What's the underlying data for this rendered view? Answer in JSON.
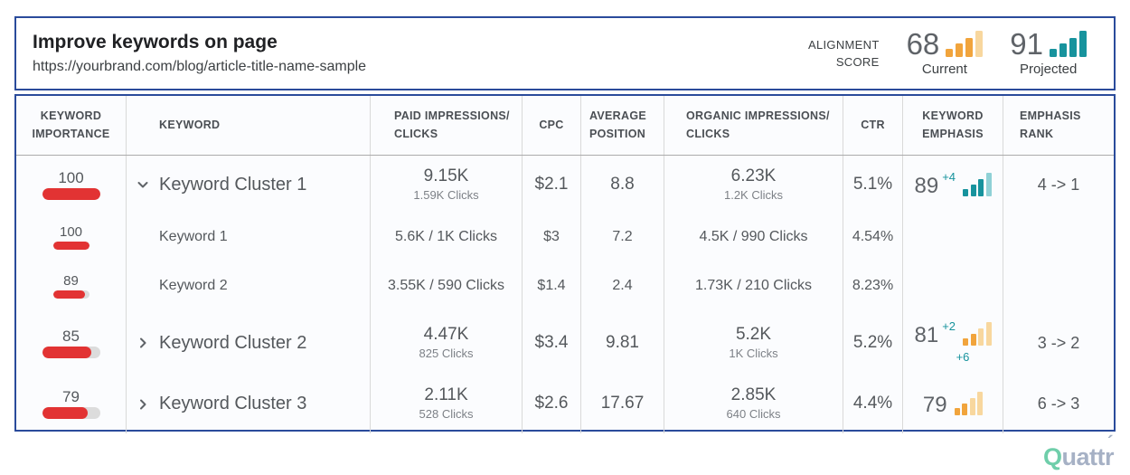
{
  "header": {
    "title": "Improve keywords on page",
    "url": "https://yourbrand.com/blog/article-title-name-sample",
    "alignment_score": {
      "label_line1": "ALIGNMENT",
      "label_line2": "SCORE",
      "current": {
        "value": "68",
        "label": "Current"
      },
      "projected": {
        "value": "91",
        "label": "Projected"
      }
    }
  },
  "table": {
    "columns": {
      "importance": "KEYWORD IMPORTANCE",
      "keyword": "KEYWORD",
      "paid": "PAID IMPRESSIONS/ CLICKS",
      "cpc": "CPC",
      "position": "AVERAGE POSITION",
      "organic": "ORGANIC IMPRESSIONS/ CLICKS",
      "ctr": "CTR",
      "emphasis": "KEYWORD EMPHASIS",
      "rank": "EMPHASIS RANK"
    },
    "rows": [
      {
        "importance": 100,
        "keyword": "Keyword Cluster 1",
        "paid_main": "9.15K",
        "paid_sub": "1.59K Clicks",
        "cpc": "$2.1",
        "position": "8.8",
        "organic_main": "6.23K",
        "organic_sub": "1.2K Clicks",
        "ctr": "5.1%",
        "emphasis_value": "89",
        "emphasis_delta": "+4",
        "rank": "4 -> 1"
      },
      {
        "importance": 100,
        "keyword": "Keyword 1",
        "paid": "5.6K / 1K Clicks",
        "cpc": "$3",
        "position": "7.2",
        "organic": "4.5K / 990 Clicks",
        "ctr": "4.54%"
      },
      {
        "importance": 89,
        "keyword": "Keyword 2",
        "paid": "3.55K / 590 Clicks",
        "cpc": "$1.4",
        "position": "2.4",
        "organic": "1.73K / 210 Clicks",
        "ctr": "8.23%"
      },
      {
        "importance": 85,
        "keyword": "Keyword Cluster 2",
        "paid_main": "4.47K",
        "paid_sub": "825 Clicks",
        "cpc": "$3.4",
        "position": "9.81",
        "organic_main": "5.2K",
        "organic_sub": "1K Clicks",
        "ctr": "5.2%",
        "emphasis_value": "81",
        "emphasis_delta": "+2",
        "emphasis_delta_below": "+6",
        "rank": "3 -> 2"
      },
      {
        "importance": 79,
        "keyword": "Keyword Cluster 3",
        "paid_main": "2.11K",
        "paid_sub": "528 Clicks",
        "cpc": "$2.6",
        "position": "17.67",
        "organic_main": "2.85K",
        "organic_sub": "640 Clicks",
        "ctr": "4.4%",
        "emphasis_value": "79",
        "rank": "6 -> 3"
      }
    ]
  },
  "icons": {
    "score_current": {
      "heights": [
        9,
        15,
        21,
        29
      ],
      "colors": [
        "#f1a43c",
        "#f1a43c",
        "#f1a43c",
        "#f8d79e"
      ]
    },
    "score_projected": {
      "heights": [
        9,
        15,
        21,
        29
      ],
      "colors": [
        "#17939d",
        "#17939d",
        "#17939d",
        "#17939d"
      ]
    },
    "emphasis_teal": {
      "heights": [
        8,
        13,
        19,
        26
      ],
      "colors": [
        "#17939d",
        "#17939d",
        "#17939d",
        "#8fd1d6"
      ]
    },
    "emphasis_orange": {
      "heights": [
        8,
        13,
        19,
        26
      ],
      "colors": [
        "#f1a43c",
        "#f1a43c",
        "#f8d79e",
        "#f8d79e"
      ]
    }
  },
  "colors": {
    "border_blue": "#2a4b9b",
    "importance_red": "#e23333",
    "track_gray": "#dcdcdc",
    "teal": "#17939d",
    "orange": "#f1a43c"
  },
  "logo": {
    "part1": "Q",
    "part2": "uatt",
    "part3": "r",
    "accent": "´"
  }
}
